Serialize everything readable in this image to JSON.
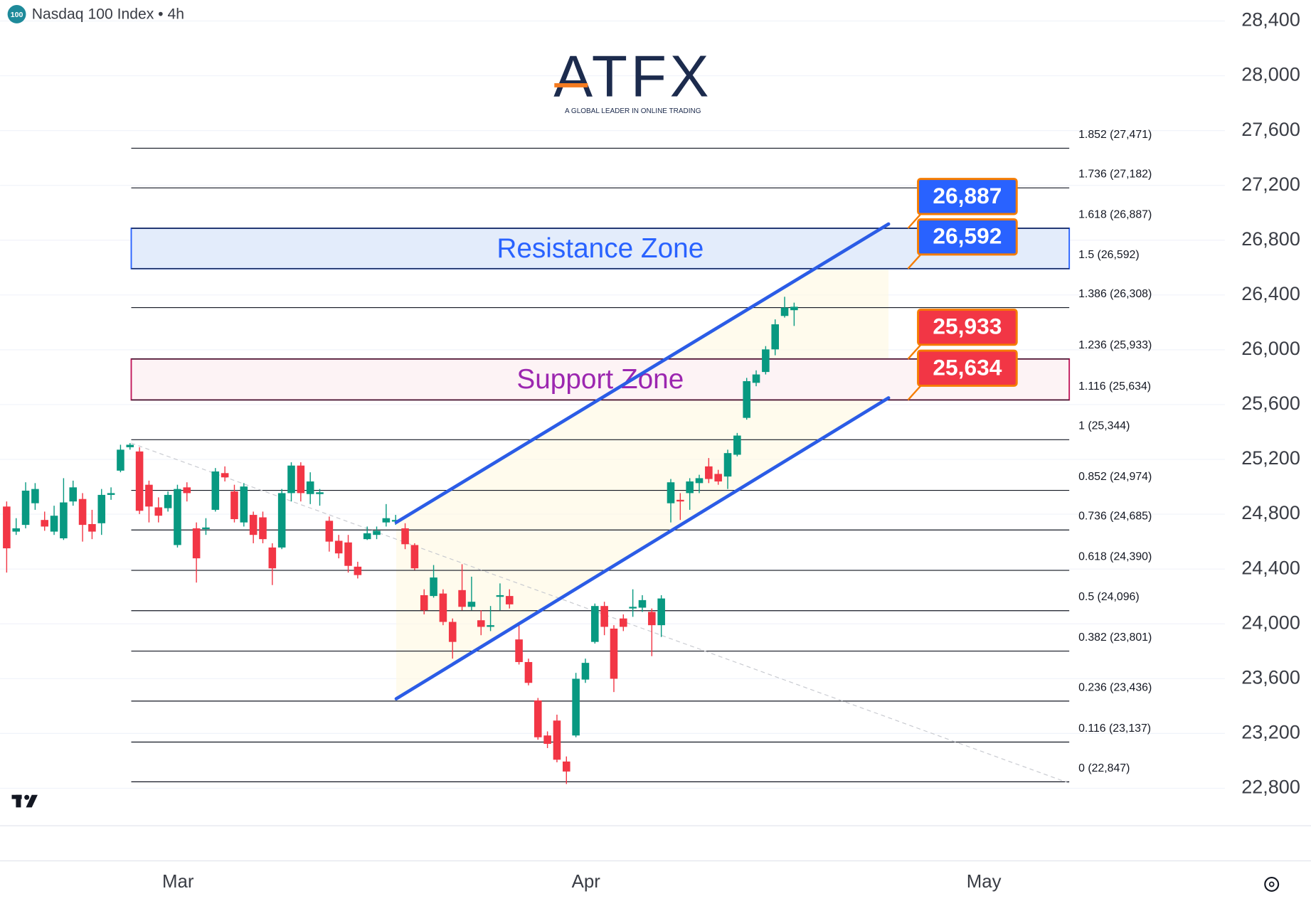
{
  "chart_data": {
    "type": "candlestick",
    "title": "Nasdaq 100 Index • 4h",
    "symbol_badge": "100",
    "logo": {
      "name": "ATFX",
      "tagline": "A GLOBAL LEADER IN ONLINE TRADING"
    },
    "up_color": "#089981",
    "down_color": "#f23645",
    "grid": true,
    "xlim": [
      -0.7,
      128.4
    ],
    "xticks": [
      {
        "value": 18.06,
        "label": "Mar"
      },
      {
        "value": 61.06,
        "label": "Apr"
      },
      {
        "value": 103.0,
        "label": "May"
      }
    ],
    "ylim": [
      22526,
      28553
    ],
    "yticks": [
      {
        "value": 22800,
        "label": "22,800"
      },
      {
        "value": 23200,
        "label": "23,200"
      },
      {
        "value": 23600,
        "label": "23,600"
      },
      {
        "value": 24000,
        "label": "24,000"
      },
      {
        "value": 24400,
        "label": "24,400"
      },
      {
        "value": 24800,
        "label": "24,800"
      },
      {
        "value": 25200,
        "label": "25,200"
      },
      {
        "value": 25600,
        "label": "25,600"
      },
      {
        "value": 26000,
        "label": "26,000"
      },
      {
        "value": 26400,
        "label": "26,400"
      },
      {
        "value": 26800,
        "label": "26,800"
      },
      {
        "value": 27200,
        "label": "27,200"
      },
      {
        "value": 27600,
        "label": "27,600"
      },
      {
        "value": 28000,
        "label": "28,000"
      },
      {
        "value": 28400,
        "label": "28,400"
      }
    ],
    "x": [
      0,
      1,
      2,
      3,
      4,
      5,
      6,
      7,
      8,
      9,
      10,
      11,
      12,
      13,
      14,
      15,
      16,
      17,
      18,
      19,
      20,
      21,
      22,
      23,
      24,
      25,
      26,
      27,
      28,
      29,
      30,
      31,
      32,
      33,
      34,
      35,
      36,
      37,
      38,
      39,
      40,
      41,
      42,
      43,
      44,
      45,
      46,
      47,
      48,
      49,
      50,
      51,
      52,
      53,
      54,
      55,
      56,
      57,
      58,
      59,
      60,
      61,
      62,
      63,
      64,
      65,
      66,
      67,
      68,
      69,
      70,
      71,
      72,
      73,
      74,
      75,
      76,
      77,
      78,
      79,
      80,
      81,
      82,
      83
    ],
    "open": [
      24856,
      24673,
      24722,
      24880,
      24758,
      24673,
      24624,
      24893,
      24911,
      24728,
      24734,
      24941,
      25118,
      25289,
      25258,
      25015,
      24850,
      24844,
      24575,
      24996,
      24697,
      24691,
      24832,
      25100,
      24966,
      24740,
      24795,
      24777,
      24557,
      24557,
      24954,
      25155,
      24947,
      24947,
      24752,
      24606,
      24594,
      24417,
      24618,
      24649,
      24740,
      24746,
      24697,
      24575,
      24209,
      24203,
      24221,
      24014,
      24246,
      24124,
      24026,
      23978,
      24197,
      24203,
      23886,
      23721,
      23441,
      23185,
      23294,
      22995,
      23185,
      23593,
      23868,
      24130,
      23965,
      24039,
      24112,
      24118,
      24087,
      23990,
      24880,
      24905,
      24954,
      25027,
      25149,
      25094,
      25075,
      25234,
      25503,
      25759,
      25838,
      26003,
      26247,
      26289
    ],
    "high": [
      24893,
      24771,
      25033,
      25027,
      24819,
      24862,
      25063,
      25045,
      24954,
      24832,
      24984,
      24996,
      25307,
      25319,
      25289,
      25045,
      24923,
      24966,
      25015,
      25033,
      24740,
      24771,
      25137,
      25149,
      25015,
      25027,
      24819,
      24819,
      24588,
      24984,
      25179,
      25179,
      25106,
      24984,
      24783,
      24649,
      24649,
      24453,
      24710,
      24710,
      24874,
      24795,
      24734,
      24588,
      24252,
      24429,
      24252,
      24039,
      24435,
      24344,
      24099,
      24130,
      24295,
      24252,
      24008,
      23746,
      23459,
      23215,
      23337,
      23032,
      23642,
      23746,
      24148,
      24161,
      23990,
      24069,
      24252,
      24209,
      24112,
      24209,
      25057,
      24954,
      25063,
      25088,
      25210,
      25124,
      25271,
      25393,
      25795,
      25850,
      26027,
      26222,
      26387,
      26344
    ],
    "low": [
      24374,
      24649,
      24697,
      24832,
      24679,
      24649,
      24612,
      24862,
      24600,
      24618,
      24649,
      24905,
      25106,
      25271,
      24801,
      24740,
      24740,
      24819,
      24557,
      24893,
      24301,
      24649,
      24819,
      25039,
      24740,
      24710,
      24588,
      24588,
      24283,
      24545,
      24893,
      24893,
      24874,
      24862,
      24527,
      24478,
      24374,
      24331,
      24612,
      24618,
      24710,
      24722,
      24545,
      24393,
      24069,
      24191,
      23990,
      23746,
      24099,
      24099,
      23917,
      23947,
      24099,
      24112,
      23703,
      23551,
      23154,
      23093,
      22989,
      22831,
      23172,
      23569,
      23856,
      23917,
      23502,
      23947,
      24051,
      24087,
      23764,
      23904,
      24740,
      24758,
      24832,
      24954,
      25027,
      25015,
      24984,
      25222,
      25490,
      25734,
      25820,
      25960,
      26235,
      26174
    ],
    "close": [
      24551,
      24697,
      24972,
      24984,
      24710,
      24789,
      24886,
      24996,
      24722,
      24673,
      24941,
      24954,
      25271,
      25307,
      24825,
      24856,
      24789,
      24941,
      24984,
      24954,
      24478,
      24703,
      25112,
      25069,
      24764,
      25002,
      24649,
      24618,
      24405,
      24954,
      25155,
      24954,
      25039,
      24960,
      24600,
      24514,
      24423,
      24356,
      24661,
      24679,
      24771,
      24758,
      24581,
      24405,
      24099,
      24338,
      24014,
      23868,
      24124,
      24161,
      23978,
      23990,
      24209,
      24142,
      23721,
      23569,
      23172,
      23124,
      23008,
      22922,
      23599,
      23715,
      24130,
      23978,
      23599,
      23978,
      24124,
      24173,
      23990,
      24185,
      25033,
      24893,
      25039,
      25063,
      25057,
      25039,
      25246,
      25374,
      25771,
      25820,
      26003,
      26186,
      26308,
      26314
    ],
    "fib_xrange": [
      13.13,
      112.0
    ],
    "fib_levels": [
      {
        "label": "1.852 (27,471)",
        "value": 27471
      },
      {
        "label": "1.736 (27,182)",
        "value": 27182
      },
      {
        "label": "1.618 (26,887)",
        "value": 26887
      },
      {
        "label": "1.5 (26,592)",
        "value": 26592
      },
      {
        "label": "1.386 (26,308)",
        "value": 26308
      },
      {
        "label": "1.236 (25,933)",
        "value": 25933
      },
      {
        "label": "1.116 (25,634)",
        "value": 25634
      },
      {
        "label": "1 (25,344)",
        "value": 25344
      },
      {
        "label": "0.852 (24,974)",
        "value": 24974
      },
      {
        "label": "0.736 (24,685)",
        "value": 24685
      },
      {
        "label": "0.618 (24,390)",
        "value": 24390
      },
      {
        "label": "0.5 (24,096)",
        "value": 24096
      },
      {
        "label": "0.382 (23,801)",
        "value": 23801
      },
      {
        "label": "0.236 (23,436)",
        "value": 23436
      },
      {
        "label": "0.116 (23,137)",
        "value": 23137
      },
      {
        "label": "0 (22,847)",
        "value": 22847
      }
    ],
    "zones": [
      {
        "label": "Resistance Zone",
        "from": 26592,
        "to": 26887,
        "color": "#2962ff",
        "fill": "#e3ecfb"
      },
      {
        "label": "Support Zone",
        "from": 25634,
        "to": 25933,
        "color": "#c2185b",
        "fill": "#fdf3f5",
        "text_color": "#9c27b0"
      }
    ],
    "callouts": [
      {
        "value": 26887,
        "label": "26,887",
        "color": "#2962ff"
      },
      {
        "value": 26592,
        "label": "26,592",
        "color": "#2962ff"
      },
      {
        "value": 25933,
        "label": "25,933",
        "color": "#f23645"
      },
      {
        "value": 25634,
        "label": "25,634",
        "color": "#f23645"
      }
    ],
    "channel": [
      {
        "x": [
          41.06,
          92.95
        ],
        "y": [
          24740,
          26918
        ]
      },
      {
        "x": [
          41.06,
          92.95
        ],
        "y": [
          23453,
          25649
        ]
      }
    ],
    "trend_line": {
      "x": [
        13.13,
        112.0
      ],
      "y": [
        25319,
        22837
      ]
    }
  }
}
